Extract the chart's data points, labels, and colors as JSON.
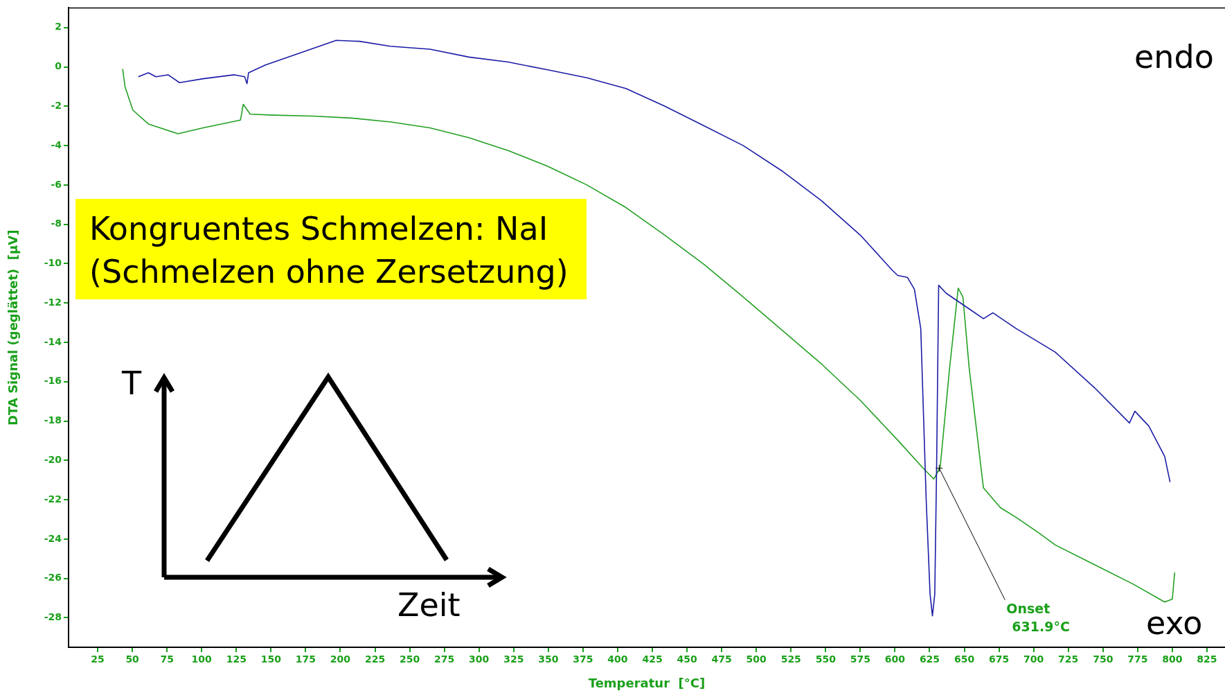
{
  "chart_data": {
    "type": "line",
    "xlabel": "Temperatur  [°C]",
    "ylabel": "DTA Signal (geglättet)  [µV]",
    "xlim": [
      4,
      838
    ],
    "ylim": [
      -29.5,
      3
    ],
    "xticks": [
      25,
      50,
      75,
      100,
      125,
      150,
      175,
      200,
      225,
      250,
      275,
      300,
      325,
      350,
      375,
      400,
      425,
      450,
      475,
      500,
      525,
      550,
      575,
      600,
      625,
      650,
      675,
      700,
      725,
      750,
      775,
      800,
      825
    ],
    "yticks": [
      2,
      0,
      -2,
      -4,
      -6,
      -8,
      -10,
      -12,
      -14,
      -16,
      -18,
      -20,
      -22,
      -24,
      -26,
      -28
    ],
    "grid": false,
    "legend": false,
    "marker": "none",
    "line_style": "solid",
    "series": [
      {
        "color": "#1c1ca8",
        "x": [
          54.3,
          61.6,
          67,
          75.7,
          84,
          101,
          123.6,
          131,
          132.7,
          133.8,
          146,
          168.7,
          197,
          213.8,
          236,
          264.6,
          292.8,
          321,
          349.6,
          377.8,
          406,
          434,
          462.5,
          490.6,
          518.8,
          547,
          575,
          597.6,
          602,
          609,
          614,
          618.6,
          622.5,
          625.3,
          627,
          628.7,
          630,
          631.5,
          636.8,
          653.5,
          663.8,
          670.6,
          687.4,
          715.6,
          743.8,
          769.1,
          773,
          783,
          794.5,
          798.4
        ],
        "values": [
          -0.5,
          -0.3,
          -0.5,
          -0.4,
          -0.8,
          -0.6,
          -0.4,
          -0.5,
          -0.85,
          -0.3,
          0.1,
          0.65,
          1.35,
          1.3,
          1.05,
          0.9,
          0.5,
          0.25,
          -0.15,
          -0.55,
          -1.1,
          -2.0,
          -3.0,
          -4.0,
          -5.3,
          -6.8,
          -8.55,
          -10.3,
          -10.6,
          -10.7,
          -11.3,
          -13.3,
          -22,
          -26.8,
          -27.9,
          -26.8,
          -20.4,
          -11.1,
          -11.5,
          -12.3,
          -12.8,
          -12.5,
          -13.3,
          -14.5,
          -16.3,
          -18.1,
          -17.5,
          -18.25,
          -19.8,
          -21.1
        ]
      },
      {
        "color": "#22a022",
        "x": [
          43,
          44.7,
          50.4,
          61.6,
          83,
          101,
          128,
          130,
          135,
          151.8,
          180,
          208,
          236.4,
          264.6,
          292.8,
          321,
          349.6,
          377.8,
          406,
          434,
          462.5,
          490.6,
          518.8,
          547,
          575,
          603,
          619.7,
          628,
          632.6,
          639.4,
          645.6,
          649,
          653.5,
          663.8,
          676,
          687.4,
          704,
          715.6,
          743.8,
          772,
          794.5,
          800,
          801.7
        ],
        "values": [
          -0.1,
          -1.0,
          -2.2,
          -2.9,
          -3.4,
          -3.1,
          -2.7,
          -1.9,
          -2.4,
          -2.45,
          -2.5,
          -2.6,
          -2.8,
          -3.1,
          -3.6,
          -4.25,
          -5.05,
          -6.0,
          -7.15,
          -8.55,
          -10.05,
          -11.7,
          -13.4,
          -15.1,
          -16.95,
          -19.05,
          -20.35,
          -20.95,
          -20.35,
          -15.3,
          -11.25,
          -11.7,
          -15.3,
          -21.4,
          -22.4,
          -22.9,
          -23.7,
          -24.3,
          -25.3,
          -26.3,
          -27.2,
          -27.05,
          -25.7
        ]
      }
    ],
    "annotations": [
      {
        "text": "Onset\n631.9°C",
        "x": 631.9,
        "y": -20.4
      },
      "endo",
      "exo",
      "Kongruentes Schmelzen: NaI\n(Schmelzen ohne Zersetzung)",
      "T",
      "Zeit"
    ]
  }
}
